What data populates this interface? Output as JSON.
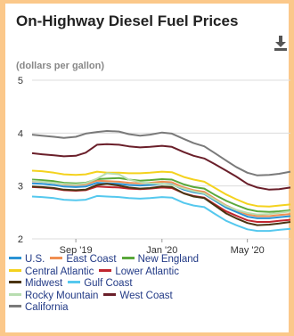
{
  "title": "On-Highway Diesel Fuel Prices",
  "subtitle": "(dollars per gallon)",
  "download_icon": "download-icon",
  "chart_data": {
    "type": "line",
    "title": "On-Highway Diesel Fuel Prices",
    "ylabel": "(dollars per gallon)",
    "xlabel": "",
    "ylim": [
      2,
      5
    ],
    "y_ticks": [
      "5",
      "4",
      "3",
      "2"
    ],
    "x_ticks": [
      "Sep '19",
      "Jan '20",
      "May '20"
    ],
    "grid": "horizontal",
    "legend": "bottom",
    "x": [
      "2019-07-01",
      "2019-07-15",
      "2019-08-01",
      "2019-08-15",
      "2019-09-01",
      "2019-09-15",
      "2019-10-01",
      "2019-10-15",
      "2019-11-01",
      "2019-11-15",
      "2019-12-01",
      "2019-12-15",
      "2020-01-01",
      "2020-01-15",
      "2020-02-01",
      "2020-02-15",
      "2020-03-01",
      "2020-03-15",
      "2020-04-01",
      "2020-04-15",
      "2020-05-01",
      "2020-05-15",
      "2020-06-01",
      "2020-06-15",
      "2020-07-01"
    ],
    "series": [
      {
        "name": "U.S.",
        "color": "#2a93d5",
        "values": [
          3.05,
          3.04,
          3.02,
          2.99,
          2.98,
          2.99,
          3.06,
          3.05,
          3.04,
          3.02,
          3.01,
          3.02,
          3.04,
          3.03,
          2.93,
          2.88,
          2.85,
          2.73,
          2.59,
          2.51,
          2.42,
          2.39,
          2.39,
          2.41,
          2.43
        ]
      },
      {
        "name": "East Coast",
        "color": "#f08f52",
        "values": [
          3.09,
          3.08,
          3.06,
          3.03,
          3.02,
          3.03,
          3.1,
          3.09,
          3.08,
          3.06,
          3.05,
          3.06,
          3.08,
          3.07,
          2.97,
          2.92,
          2.89,
          2.77,
          2.63,
          2.55,
          2.46,
          2.43,
          2.43,
          2.45,
          2.47
        ]
      },
      {
        "name": "New England",
        "color": "#5aa83b",
        "values": [
          3.12,
          3.11,
          3.09,
          3.06,
          3.05,
          3.06,
          3.13,
          3.14,
          3.15,
          3.12,
          3.1,
          3.11,
          3.13,
          3.12,
          3.03,
          2.98,
          2.95,
          2.84,
          2.72,
          2.64,
          2.56,
          2.52,
          2.51,
          2.52,
          2.54
        ]
      },
      {
        "name": "Central Atlantic",
        "color": "#f4d21e",
        "values": [
          3.29,
          3.28,
          3.25,
          3.22,
          3.21,
          3.22,
          3.27,
          3.25,
          3.25,
          3.24,
          3.24,
          3.25,
          3.27,
          3.26,
          3.17,
          3.12,
          3.08,
          2.97,
          2.84,
          2.75,
          2.66,
          2.62,
          2.61,
          2.63,
          2.65
        ]
      },
      {
        "name": "Lower Atlantic",
        "color": "#c0262f",
        "values": [
          2.98,
          2.97,
          2.95,
          2.92,
          2.91,
          2.92,
          2.99,
          2.98,
          2.97,
          2.95,
          2.94,
          2.95,
          2.97,
          2.96,
          2.86,
          2.81,
          2.78,
          2.66,
          2.52,
          2.44,
          2.35,
          2.32,
          2.32,
          2.34,
          2.36
        ]
      },
      {
        "name": "Midwest",
        "color": "#4a3412",
        "values": [
          2.99,
          2.98,
          2.96,
          2.93,
          2.92,
          2.93,
          3.02,
          3.04,
          3.01,
          2.97,
          2.95,
          2.96,
          2.99,
          2.98,
          2.86,
          2.8,
          2.77,
          2.64,
          2.48,
          2.39,
          2.3,
          2.26,
          2.27,
          2.29,
          2.32
        ]
      },
      {
        "name": "Gulf Coast",
        "color": "#55c8ee",
        "values": [
          2.8,
          2.79,
          2.77,
          2.74,
          2.73,
          2.74,
          2.81,
          2.8,
          2.79,
          2.77,
          2.76,
          2.77,
          2.79,
          2.78,
          2.68,
          2.63,
          2.6,
          2.48,
          2.34,
          2.26,
          2.18,
          2.15,
          2.15,
          2.17,
          2.19
        ]
      },
      {
        "name": "Rocky Mountain",
        "color": "#b8ddb0",
        "values": [
          3.1,
          3.08,
          3.06,
          3.04,
          3.03,
          3.05,
          3.14,
          3.24,
          3.22,
          3.12,
          3.07,
          3.05,
          3.04,
          3.02,
          2.95,
          2.9,
          2.86,
          2.75,
          2.62,
          2.55,
          2.49,
          2.46,
          2.47,
          2.49,
          2.52
        ]
      },
      {
        "name": "West Coast",
        "color": "#6a1f2a",
        "values": [
          3.62,
          3.6,
          3.58,
          3.56,
          3.57,
          3.63,
          3.78,
          3.79,
          3.78,
          3.75,
          3.73,
          3.74,
          3.76,
          3.74,
          3.64,
          3.57,
          3.52,
          3.42,
          3.29,
          3.18,
          3.04,
          2.97,
          2.93,
          2.94,
          2.97
        ]
      },
      {
        "name": "California",
        "color": "#7a7a7a",
        "values": [
          3.97,
          3.95,
          3.93,
          3.91,
          3.93,
          3.99,
          4.02,
          4.04,
          4.03,
          3.98,
          3.95,
          3.97,
          4.01,
          3.99,
          3.89,
          3.81,
          3.75,
          3.63,
          3.48,
          3.36,
          3.25,
          3.2,
          3.21,
          3.23,
          3.27
        ]
      }
    ]
  },
  "legend_rows": [
    [
      {
        "label": "U.S.",
        "color": "#2a93d5"
      },
      {
        "label": "East Coast",
        "color": "#f08f52"
      },
      {
        "label": "New England",
        "color": "#5aa83b"
      }
    ],
    [
      {
        "label": "Central Atlantic",
        "color": "#f4d21e"
      },
      {
        "label": "Lower Atlantic",
        "color": "#c0262f"
      }
    ],
    [
      {
        "label": "Midwest",
        "color": "#4a3412"
      },
      {
        "label": "Gulf Coast",
        "color": "#55c8ee"
      }
    ],
    [
      {
        "label": "Rocky Mountain",
        "color": "#b8ddb0"
      },
      {
        "label": "West Coast",
        "color": "#6a1f2a"
      }
    ],
    [
      {
        "label": "California",
        "color": "#7a7a7a"
      }
    ]
  ]
}
